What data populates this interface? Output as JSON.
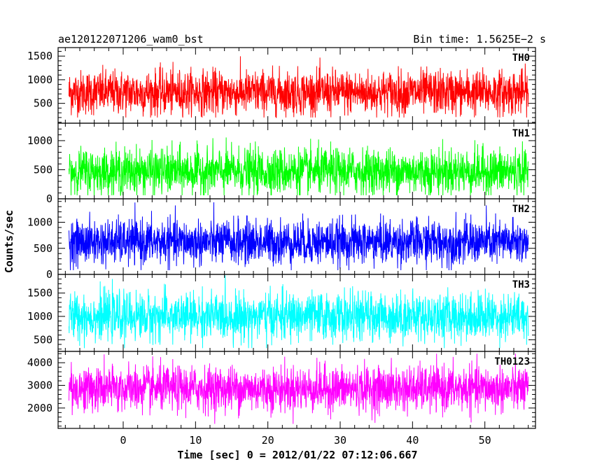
{
  "chart_data": {
    "type": "line",
    "title": "ae120122071206_wam0_bst",
    "subtitle": "Bin time: 1.5625E−2 s",
    "xlabel": "Time [sec] 0 = 2012/01/22 07:12:06.667",
    "ylabel": "Counts/sec",
    "xlim": [
      -9,
      57
    ],
    "x_data_range": [
      -7.5,
      56
    ],
    "x_ticks": [
      0,
      10,
      20,
      30,
      40,
      50
    ],
    "x_tick_labels": [
      "0",
      "10",
      "20",
      "30",
      "40",
      "50"
    ],
    "grid": false,
    "panels": [
      {
        "name": "TH0",
        "color": "#ff0000",
        "ylim": [
          80,
          1680
        ],
        "yticks": [
          500,
          1000,
          1500
        ],
        "ytick_labels": [
          "500",
          "1000",
          "1500"
        ],
        "approx_mean": 730,
        "approx_range": [
          200,
          1650
        ]
      },
      {
        "name": "TH1",
        "color": "#00ff00",
        "ylim": [
          0,
          1300
        ],
        "yticks": [
          0,
          500,
          1000
        ],
        "ytick_labels": [
          "0",
          "500",
          "1000"
        ],
        "approx_mean": 470,
        "approx_range": [
          60,
          1280
        ]
      },
      {
        "name": "TH2",
        "color": "#0000ff",
        "ylim": [
          0,
          1450
        ],
        "yticks": [
          0,
          500,
          1000
        ],
        "ytick_labels": [
          "0",
          "500",
          "1000"
        ],
        "approx_mean": 620,
        "approx_range": [
          80,
          1400
        ]
      },
      {
        "name": "TH3",
        "color": "#00ffff",
        "ylim": [
          250,
          1900
        ],
        "yticks": [
          500,
          1000,
          1500
        ],
        "ytick_labels": [
          "500",
          "1000",
          "1500"
        ],
        "approx_mean": 1000,
        "approx_range": [
          320,
          1880
        ]
      },
      {
        "name": "TH0123",
        "color": "#ff00ff",
        "ylim": [
          1100,
          4500
        ],
        "yticks": [
          2000,
          3000,
          4000
        ],
        "ytick_labels": [
          "2000",
          "3000",
          "4000"
        ],
        "approx_mean": 2850,
        "approx_range": [
          1300,
          4400
        ]
      }
    ]
  }
}
